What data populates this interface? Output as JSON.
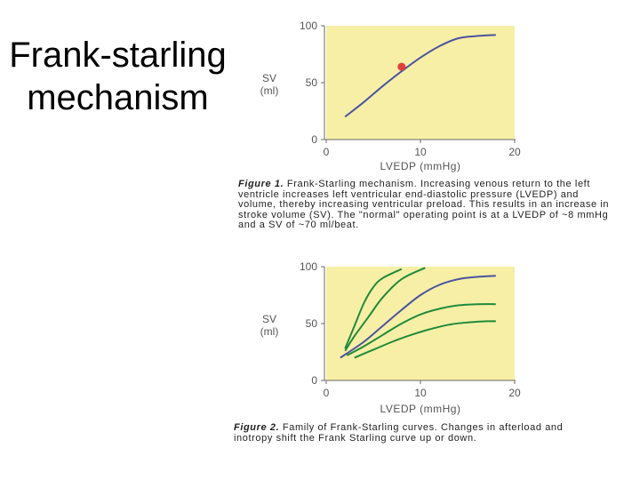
{
  "slide": {
    "title_line1": "Frank-starling",
    "title_line2": "mechanism"
  },
  "colors": {
    "plot_background": "#f7efa6",
    "axis": "#6a6a6a",
    "curve_blue": "#4a53a0",
    "curve_green": "#1f8a3a",
    "normal_point": "#e0403a"
  },
  "figure1": {
    "caption_label": "Figure 1.",
    "caption_text": "Frank-Starling mechanism. Increasing venous return to the left ventricle increases left ventricular end-diastolic pressure (LVEDP) and volume, thereby increasing ventricular preload. This results in an increase in stroke volume (SV). The \"normal\" operating point is at a LVEDP of ~8 mmHg and a SV of ~70 ml/beat."
  },
  "figure2": {
    "caption_label": "Figure 2.",
    "caption_text": "Family of Frank-Starling curves. Changes in afterload and inotropy shift the Frank Starling curve up or down."
  },
  "chart_data": [
    {
      "type": "line",
      "title": "",
      "xlabel": "LVEDP (mmHg)",
      "ylabel_line1": "SV",
      "ylabel_line2": "(ml)",
      "xlim": [
        0,
        20
      ],
      "ylim": [
        0,
        100
      ],
      "xticks": [
        0,
        10,
        20
      ],
      "yticks": [
        0,
        50,
        100
      ],
      "grid": false,
      "series": [
        {
          "color": "blue",
          "x": [
            2,
            4,
            6,
            8,
            10,
            12,
            14,
            16,
            18
          ],
          "y": [
            20,
            33,
            47,
            60,
            72,
            82,
            89,
            91,
            92
          ]
        }
      ],
      "annotations": [
        {
          "x": 8,
          "y": 64,
          "label": ""
        }
      ]
    },
    {
      "type": "line",
      "title": "",
      "xlabel": "LVEDP (mmHg)",
      "ylabel_line1": "SV",
      "ylabel_line2": "(ml)",
      "xlim": [
        0,
        20
      ],
      "ylim": [
        0,
        100
      ],
      "xticks": [
        0,
        10,
        20
      ],
      "yticks": [
        0,
        50,
        100
      ],
      "grid": false,
      "series": [
        {
          "color": "green",
          "x": [
            2.0,
            3.0,
            4.0,
            5.0,
            6.0,
            8.0
          ],
          "y": [
            28,
            48,
            68,
            82,
            90,
            98
          ]
        },
        {
          "color": "green",
          "x": [
            2.0,
            3.0,
            4.5,
            6.0,
            8.0,
            10.5
          ],
          "y": [
            26,
            39,
            56,
            73,
            89,
            99
          ]
        },
        {
          "color": "blue",
          "x": [
            1.5,
            4.0,
            6.0,
            8.0,
            10.0,
            12.0,
            14.0,
            16.0,
            18.0
          ],
          "y": [
            20,
            34,
            48,
            62,
            75,
            84,
            89,
            91,
            92
          ]
        },
        {
          "color": "green",
          "x": [
            2.2,
            4.0,
            6.0,
            8.0,
            10.0,
            12.0,
            14.0,
            16.0,
            18.0
          ],
          "y": [
            22,
            30,
            40,
            50,
            58,
            63,
            66,
            67,
            67
          ]
        },
        {
          "color": "green",
          "x": [
            3.0,
            5.0,
            7.0,
            9.0,
            11.0,
            13.0,
            15.0,
            17.0,
            18.0
          ],
          "y": [
            20,
            27,
            34,
            40,
            45,
            49,
            51,
            52,
            52
          ]
        }
      ]
    }
  ]
}
